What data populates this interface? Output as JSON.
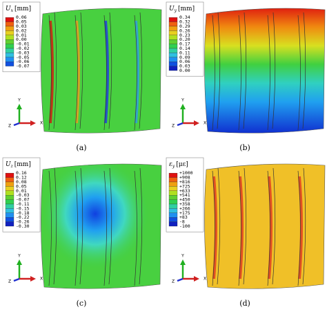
{
  "panels": [
    {
      "label": "(a)",
      "legend": {
        "symbol": "U",
        "subscript": "x",
        "unit": "[mm]",
        "ticks": [
          "0.06",
          "0.05",
          "0.03",
          "0.02",
          "0.01",
          "0.00",
          "-0.01",
          "-0.02",
          "-0.03",
          "-0.05",
          "-0.06",
          "-0.07"
        ]
      },
      "axes": {
        "y": "Y",
        "z": "Z",
        "x": "X"
      }
    },
    {
      "label": "(b)",
      "legend": {
        "symbol": "U",
        "subscript": "y",
        "unit": "[mm]",
        "ticks": [
          "0.34",
          "0.32",
          "0.29",
          "0.26",
          "0.23",
          "0.20",
          "0.17",
          "0.14",
          "0.11",
          "0.09",
          "0.06",
          "0.03",
          "0.00"
        ]
      },
      "axes": {
        "y": "Y",
        "z": "Z",
        "x": "X"
      }
    },
    {
      "label": "(c)",
      "legend": {
        "symbol": "U",
        "subscript": "z",
        "unit": "[mm]",
        "ticks": [
          "0.16",
          "0.12",
          "0.08",
          "0.05",
          "0.01",
          "-0.03",
          "-0.07",
          "-0.11",
          "-0.15",
          "-0.18",
          "-0.22",
          "-0.26",
          "-0.30"
        ]
      },
      "axes": {
        "y": "Y",
        "z": "Z",
        "x": "X"
      }
    },
    {
      "label": "(d)",
      "legend": {
        "symbol": "ε",
        "subscript": "y",
        "unit": "[με]",
        "ticks": [
          "+1000",
          "+908",
          "+816",
          "+725",
          "+633",
          "+541",
          "+450",
          "+358",
          "+266",
          "+175",
          "+83",
          "-8",
          "-100"
        ]
      },
      "axes": {
        "y": "Y",
        "z": "Z",
        "x": "X"
      }
    }
  ]
}
